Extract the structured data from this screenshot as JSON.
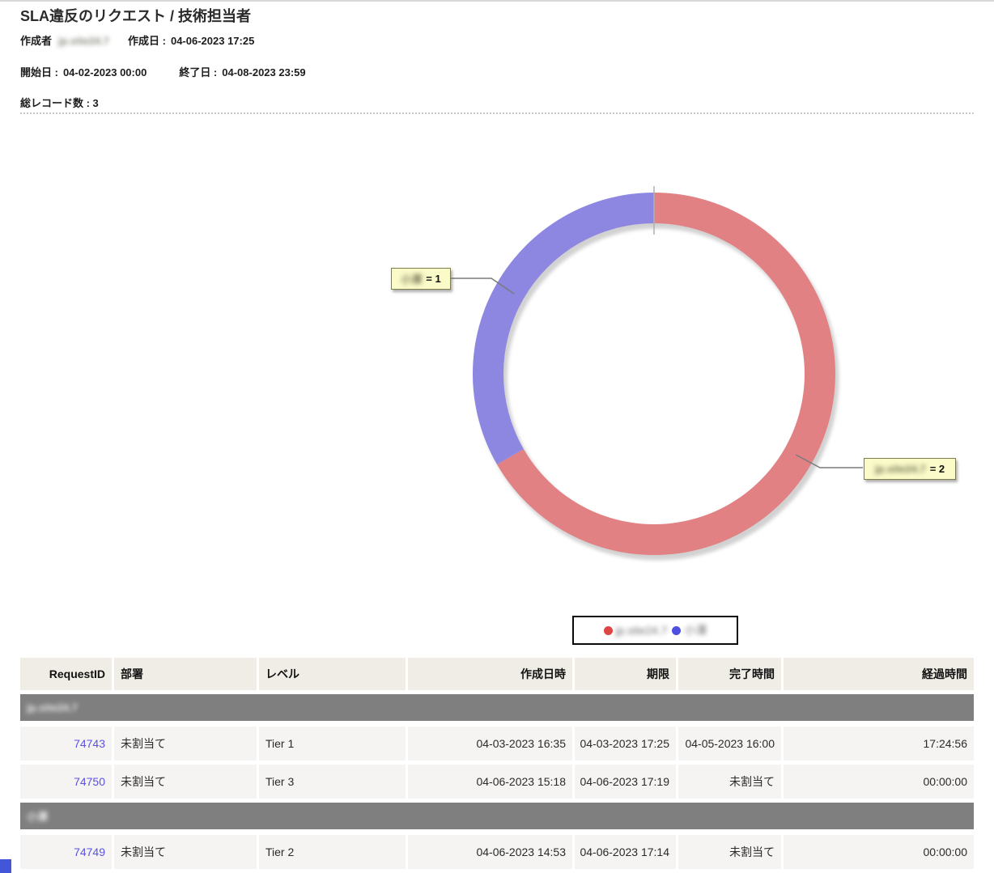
{
  "header": {
    "title": "SLA違反のリクエスト / 技術担当者",
    "created_by_label": "作成者",
    "created_by_value": "jp.site24.7",
    "created_on_label": "作成日 :",
    "created_on_value": "04-06-2023 17:25",
    "start_label": "開始日 :",
    "start_value": "04-02-2023 00:00",
    "end_label": "終了日 :",
    "end_value": "04-08-2023 23:59",
    "total_records_label": "総レコード数 : 3"
  },
  "chart_data": {
    "type": "pie",
    "subtype": "donut",
    "title": "SLA違反のリクエスト / 技術担当者",
    "total": 3,
    "slices": [
      {
        "key": "jp-site24-7",
        "label": "jp.site24.7",
        "value": 2,
        "color": "#e18184"
      },
      {
        "key": "assignee-2",
        "label": "小澤",
        "value": 1,
        "color": "#8d87e2"
      }
    ],
    "legend_position": "bottom",
    "legend": [
      {
        "label": "jp.site24.7",
        "color": "#e04545"
      },
      {
        "label": "小澤",
        "color": "#4f4fe0"
      }
    ],
    "callouts": [
      {
        "name": "小澤",
        "value_text": "= 1"
      },
      {
        "name": "jp.site24.7",
        "value_text": "= 2"
      }
    ]
  },
  "table": {
    "columns": [
      {
        "label": "RequestID"
      },
      {
        "label": "部署"
      },
      {
        "label": "レベル"
      },
      {
        "label": "作成日時"
      },
      {
        "label": "期限"
      },
      {
        "label": "完了時間"
      },
      {
        "label": "経過時間"
      }
    ],
    "groups": [
      {
        "name": "jp.site24.7",
        "rows": [
          [
            "74743",
            "未割当て",
            "Tier 1",
            "04-03-2023 16:35",
            "04-03-2023 17:25",
            "04-05-2023 16:00",
            "17:24:56"
          ],
          [
            "74750",
            "未割当て",
            "Tier 3",
            "04-06-2023 15:18",
            "04-06-2023 17:19",
            "未割当て",
            "00:00:00"
          ]
        ]
      },
      {
        "name": "小澤",
        "rows": [
          [
            "74749",
            "未割当て",
            "Tier 2",
            "04-06-2023 14:53",
            "04-06-2023 17:14",
            "未割当て",
            "00:00:00"
          ]
        ]
      }
    ]
  }
}
